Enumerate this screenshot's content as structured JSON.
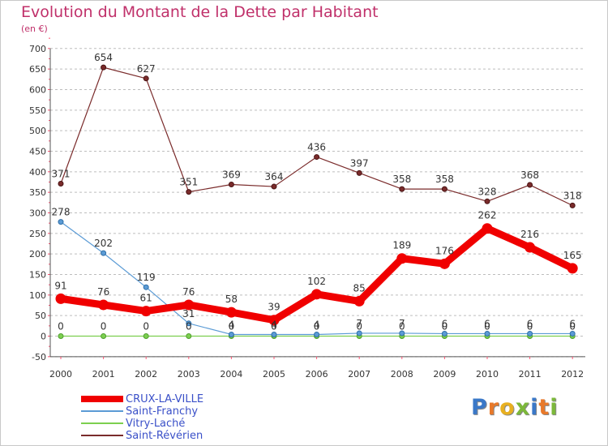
{
  "chart_data": {
    "type": "line",
    "title": "Evolution du Montant de la Dette par Habitant",
    "subtitle": "(en €)",
    "xlabel": "",
    "ylabel": "",
    "categories": [
      "2000",
      "2001",
      "2002",
      "2003",
      "2004",
      "2005",
      "2006",
      "2007",
      "2008",
      "2009",
      "2010",
      "2011",
      "2012"
    ],
    "ylim": [
      -50,
      700
    ],
    "yticks": [
      -50,
      0,
      50,
      100,
      150,
      200,
      250,
      300,
      350,
      400,
      450,
      500,
      550,
      600,
      650,
      700
    ],
    "grid": "horizontal dashed",
    "legend_position": "bottom-left",
    "series": [
      {
        "name": "CRUX-LA-VILLE",
        "color": "#f00000",
        "values": [
          91,
          76,
          61,
          76,
          58,
          39,
          102,
          85,
          189,
          176,
          262,
          216,
          165
        ],
        "labels": [
          "91",
          "76",
          "61",
          "76",
          "58",
          "39",
          "102",
          "85",
          "189",
          "176",
          "262",
          "216",
          "165"
        ]
      },
      {
        "name": "Saint-Franchy",
        "color": "#5b9bd5",
        "values": [
          278,
          202,
          119,
          31,
          4,
          4,
          4,
          7,
          7,
          6,
          6,
          6,
          6
        ],
        "labels": [
          "278",
          "202",
          "119",
          "31",
          "4",
          "4",
          "4",
          "7",
          "7",
          "6",
          "6",
          "6",
          "6"
        ]
      },
      {
        "name": "Vitry-Laché",
        "color": "#7ccf4f",
        "values": [
          0,
          0,
          0,
          0,
          0,
          0,
          0,
          0,
          0,
          0,
          0,
          0,
          0
        ],
        "labels": [
          "0",
          "0",
          "0",
          "0",
          "0",
          "0",
          "0",
          "0",
          "0",
          "0",
          "0",
          "0",
          "0"
        ]
      },
      {
        "name": "Saint-Révérien",
        "color": "#7a2b2b",
        "values": [
          371,
          654,
          627,
          351,
          369,
          364,
          436,
          397,
          358,
          358,
          328,
          368,
          318
        ],
        "labels": [
          "371",
          "654",
          "627",
          "351",
          "369",
          "364",
          "436",
          "397",
          "358",
          "358",
          "328",
          "368",
          "318"
        ]
      }
    ]
  },
  "logo": {
    "letters": [
      "P",
      "r",
      "o",
      "x",
      "i",
      "t",
      "i"
    ],
    "colors": [
      "#3a78c8",
      "#e8792a",
      "#e8b020",
      "#7cb83a",
      "#3a78c8",
      "#e8792a",
      "#7cb83a"
    ]
  }
}
